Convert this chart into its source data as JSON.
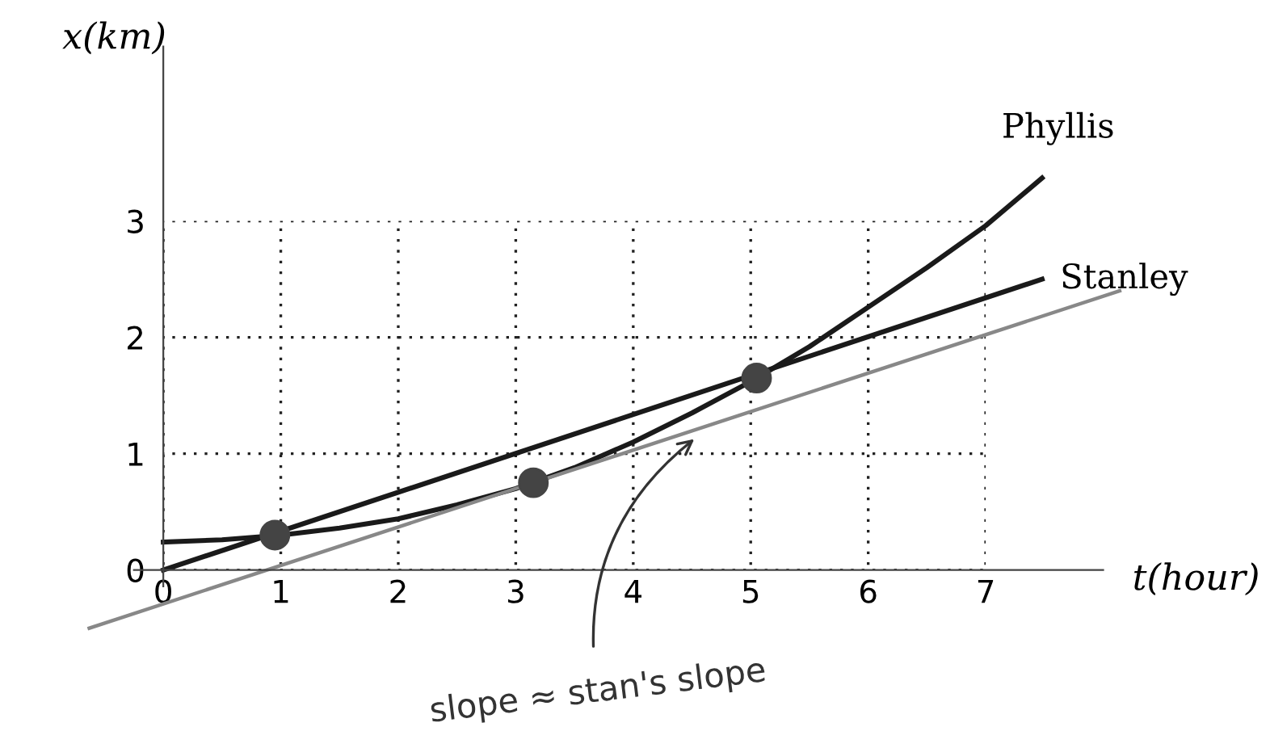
{
  "chart_data": {
    "type": "line",
    "xlabel": "t(hour)",
    "ylabel": "x(km)",
    "xlim": [
      -1.39,
      9.42
    ],
    "ylim": [
      -1.53,
      4.9
    ],
    "xticks": [
      0,
      1,
      2,
      3,
      4,
      5,
      6,
      7
    ],
    "yticks": [
      0,
      1,
      2,
      3
    ],
    "grid": true,
    "legend": false,
    "line_style": "solid",
    "marker": "none",
    "series": [
      {
        "name": "Phyllis",
        "color": "#1a1a1a",
        "x": [
          0,
          0.5,
          1,
          1.5,
          2,
          2.5,
          3,
          3.5,
          4,
          4.5,
          5,
          5.5,
          6,
          6.5,
          7,
          7.48
        ],
        "values": [
          0.24,
          0.26,
          0.3,
          0.36,
          0.44,
          0.56,
          0.7,
          0.88,
          1.1,
          1.35,
          1.62,
          1.92,
          2.26,
          2.6,
          2.96,
          3.37
        ]
      },
      {
        "name": "Stanley",
        "color": "#1a1a1a",
        "x": [
          0,
          7.48
        ],
        "values": [
          0,
          2.5
        ]
      },
      {
        "color": "#888888",
        "x": [
          -0.63,
          8.14
        ],
        "values": [
          -0.5,
          2.4
        ]
      },
      {
        "type": "scatter",
        "marker": "circle",
        "color": "#444444",
        "x": [
          0.95,
          3.15,
          5.05
        ],
        "values": [
          0.3,
          0.75,
          1.65
        ]
      }
    ],
    "annotations": [
      {
        "text": "slope ≈ stan's slope",
        "x": 4.55,
        "y": 1.15
      }
    ]
  }
}
